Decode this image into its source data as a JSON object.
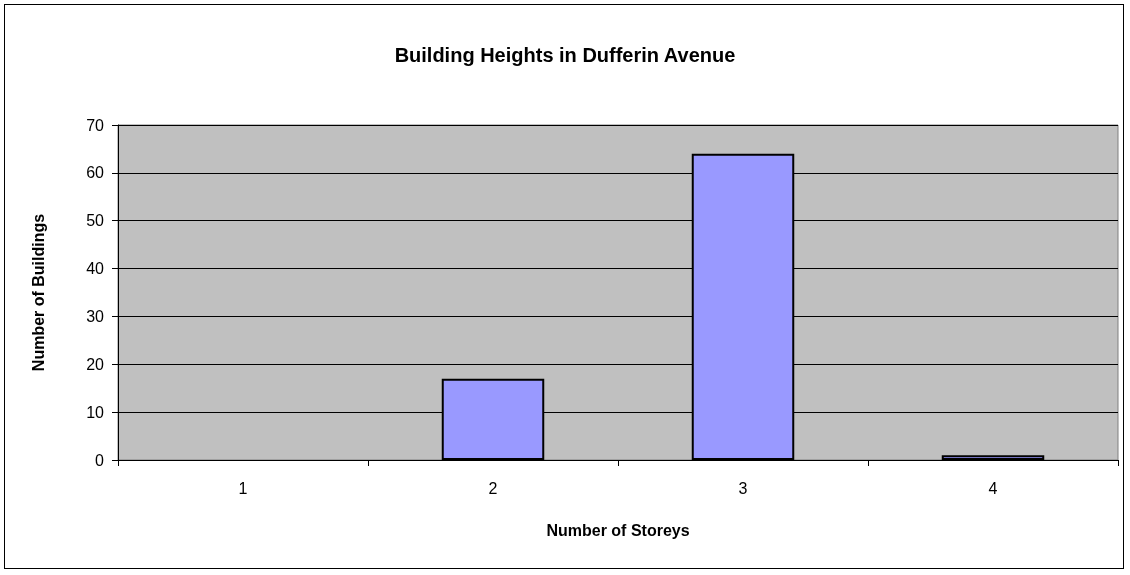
{
  "chart_data": {
    "type": "bar",
    "title": "Building Heights in Dufferin Avenue",
    "xlabel": "Number of Storeys",
    "ylabel": "Number of Buildings",
    "categories": [
      "1",
      "2",
      "3",
      "4"
    ],
    "values": [
      0,
      17,
      64,
      1
    ],
    "color": "#9999ff",
    "ylim": [
      0,
      70
    ],
    "yticks": [
      0,
      10,
      20,
      30,
      40,
      50,
      60,
      70
    ],
    "grid": "y"
  }
}
